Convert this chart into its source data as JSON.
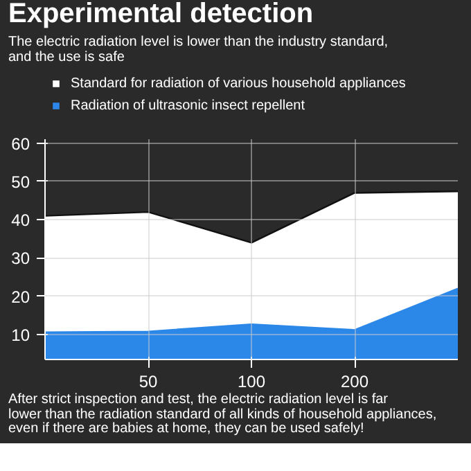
{
  "chart_data": {
    "type": "area",
    "title": "Experimental detection",
    "subtitle": "The electric radiation level is lower than the industry standard,\nand the use is safe",
    "annotations": [
      "After strict inspection and test, the electric radiation level is far\nlower than the radiation standard of all kinds of household appliances,\neven if there are babies at home, they can be used safely!"
    ],
    "categories": [
      null,
      "50",
      "100",
      "200",
      null
    ],
    "series": [
      {
        "name": "Standard for radiation of various household appliances",
        "color": "#ffffff",
        "values": [
          41,
          42,
          34,
          47,
          47.4
        ]
      },
      {
        "name": "Radiation of ultrasonic insect repellent",
        "color": "#2b87e8",
        "values": [
          10.6,
          10.8,
          12.7,
          11.2,
          22
        ]
      }
    ],
    "ylim": [
      3.5,
      61
    ],
    "yticks": [
      10,
      20,
      30,
      40,
      50,
      60
    ],
    "grid": true,
    "legend": "top left"
  }
}
